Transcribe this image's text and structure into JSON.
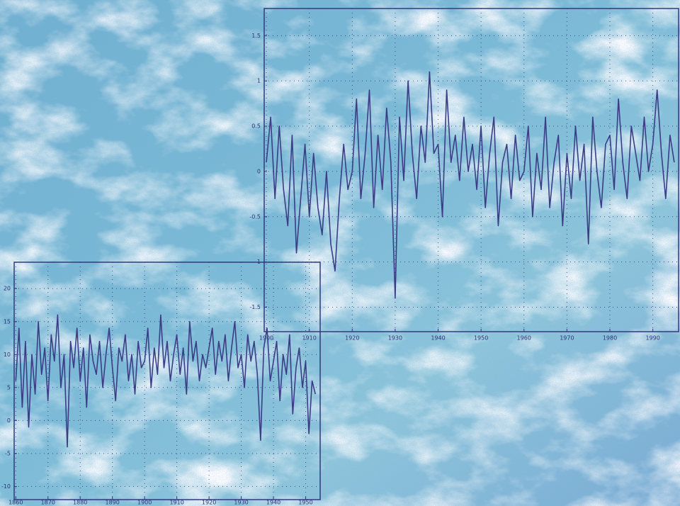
{
  "chart_data": [
    {
      "type": "line",
      "color": "#3b3d86",
      "grid": true,
      "xlim": [
        1899.5,
        1996
      ],
      "ylim": [
        -1.77,
        1.8
      ],
      "xticks": [
        1900,
        1910,
        1920,
        1930,
        1940,
        1950,
        1960,
        1970,
        1980,
        1990
      ],
      "yticks": [
        -1.5,
        -1,
        -0.5,
        0,
        0.5,
        1,
        1.5
      ],
      "x": [
        1900,
        1901,
        1902,
        1903,
        1904,
        1905,
        1906,
        1907,
        1908,
        1909,
        1910,
        1911,
        1912,
        1913,
        1914,
        1915,
        1916,
        1917,
        1918,
        1919,
        1920,
        1921,
        1922,
        1923,
        1924,
        1925,
        1926,
        1927,
        1928,
        1929,
        1930,
        1931,
        1932,
        1933,
        1934,
        1935,
        1936,
        1937,
        1938,
        1939,
        1940,
        1941,
        1942,
        1943,
        1944,
        1945,
        1946,
        1947,
        1948,
        1949,
        1950,
        1951,
        1952,
        1953,
        1954,
        1955,
        1956,
        1957,
        1958,
        1959,
        1960,
        1961,
        1962,
        1963,
        1964,
        1965,
        1966,
        1967,
        1968,
        1969,
        1970,
        1971,
        1972,
        1973,
        1974,
        1975,
        1976,
        1977,
        1978,
        1979,
        1980,
        1981,
        1982,
        1983,
        1984,
        1985,
        1986,
        1987,
        1988,
        1989,
        1990,
        1991,
        1992,
        1993,
        1994,
        1995
      ],
      "values": [
        0.1,
        0.6,
        -0.3,
        0.5,
        -0.2,
        -0.6,
        0.4,
        -0.9,
        -0.3,
        0.3,
        -0.5,
        0.2,
        -0.4,
        -0.7,
        0.0,
        -0.8,
        -1.1,
        -0.3,
        0.3,
        -0.2,
        0.0,
        0.8,
        -0.3,
        0.2,
        0.9,
        -0.4,
        0.4,
        -0.2,
        0.7,
        0.1,
        -1.4,
        0.6,
        -0.1,
        1.0,
        0.2,
        -0.3,
        0.5,
        0.1,
        1.1,
        0.2,
        0.3,
        -0.5,
        0.9,
        0.1,
        0.4,
        -0.1,
        0.6,
        0.0,
        0.3,
        -0.2,
        0.5,
        -0.4,
        0.2,
        0.6,
        -0.6,
        0.1,
        0.3,
        -0.3,
        0.4,
        -0.1,
        0.0,
        0.5,
        -0.5,
        0.2,
        -0.2,
        0.6,
        -0.4,
        0.1,
        0.4,
        -0.6,
        0.2,
        -0.3,
        0.5,
        -0.1,
        0.3,
        -0.8,
        0.6,
        0.0,
        -0.4,
        0.3,
        0.4,
        -0.2,
        0.8,
        0.1,
        -0.3,
        0.5,
        0.2,
        -0.1,
        0.6,
        0.0,
        0.3,
        0.9,
        0.2,
        -0.3,
        0.4,
        0.1
      ]
    },
    {
      "type": "line",
      "color": "#3b3d86",
      "grid": true,
      "xlim": [
        1859.5,
        1954.5
      ],
      "ylim": [
        -12,
        24
      ],
      "xticks": [
        1860,
        1870,
        1880,
        1890,
        1900,
        1910,
        1920,
        1930,
        1940,
        1950
      ],
      "yticks": [
        -10,
        -5,
        0,
        5,
        10,
        15,
        20
      ],
      "x": [
        1860,
        1861,
        1862,
        1863,
        1864,
        1865,
        1866,
        1867,
        1868,
        1869,
        1870,
        1871,
        1872,
        1873,
        1874,
        1875,
        1876,
        1877,
        1878,
        1879,
        1880,
        1881,
        1882,
        1883,
        1884,
        1885,
        1886,
        1887,
        1888,
        1889,
        1890,
        1891,
        1892,
        1893,
        1894,
        1895,
        1896,
        1897,
        1898,
        1899,
        1900,
        1901,
        1902,
        1903,
        1904,
        1905,
        1906,
        1907,
        1908,
        1909,
        1910,
        1911,
        1912,
        1913,
        1914,
        1915,
        1916,
        1917,
        1918,
        1919,
        1920,
        1921,
        1922,
        1923,
        1924,
        1925,
        1926,
        1927,
        1928,
        1929,
        1930,
        1931,
        1932,
        1933,
        1934,
        1935,
        1936,
        1937,
        1938,
        1939,
        1940,
        1941,
        1942,
        1943,
        1944,
        1945,
        1946,
        1947,
        1948,
        1949,
        1950,
        1951,
        1952,
        1953
      ],
      "values": [
        6,
        14,
        2,
        12,
        -1,
        10,
        4,
        15,
        7,
        11,
        3,
        13,
        9,
        16,
        5,
        10,
        -4,
        12,
        8,
        14,
        6,
        11,
        2,
        13,
        9,
        7,
        12,
        5,
        10,
        14,
        8,
        3,
        11,
        9,
        13,
        6,
        10,
        4,
        12,
        8,
        9,
        14,
        5,
        11,
        7,
        16,
        8,
        12,
        6,
        10,
        13,
        7,
        11,
        4,
        15,
        9,
        12,
        6,
        10,
        8,
        11,
        14,
        7,
        12,
        9,
        13,
        6,
        11,
        15,
        8,
        10,
        5,
        13,
        9,
        12,
        7,
        -3,
        11,
        14,
        6,
        9,
        12,
        3,
        10,
        7,
        13,
        1,
        8,
        11,
        5,
        9,
        -2,
        6,
        4
      ]
    }
  ]
}
